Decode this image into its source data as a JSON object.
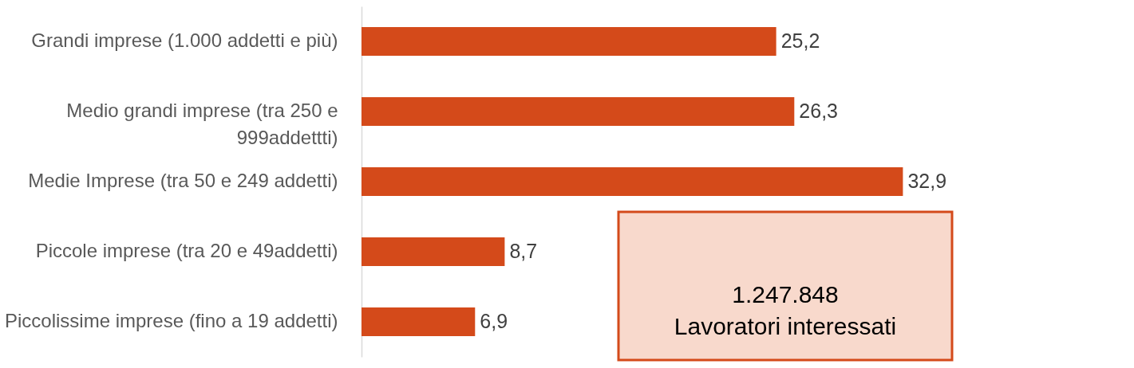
{
  "chart_data": {
    "type": "bar",
    "orientation": "horizontal",
    "categories": [
      "Grandi imprese (1.000 addetti e più)",
      "Medio grandi imprese (tra 250 e 999addettti)",
      "Medie Imprese (tra 50 e 249 addetti)",
      "Piccole imprese (tra 20 e 49addetti)",
      "Piccolissime imprese (fino a 19 addetti)"
    ],
    "values": [
      25.2,
      26.3,
      32.9,
      8.7,
      6.9
    ],
    "value_labels": [
      "25,2",
      "26,3",
      "32,9",
      "8,7",
      "6,9"
    ],
    "color": "#d44a1a",
    "annotations": [
      "1.247.848\nLavoratori interessati"
    ],
    "grid": false,
    "legend": false
  }
}
